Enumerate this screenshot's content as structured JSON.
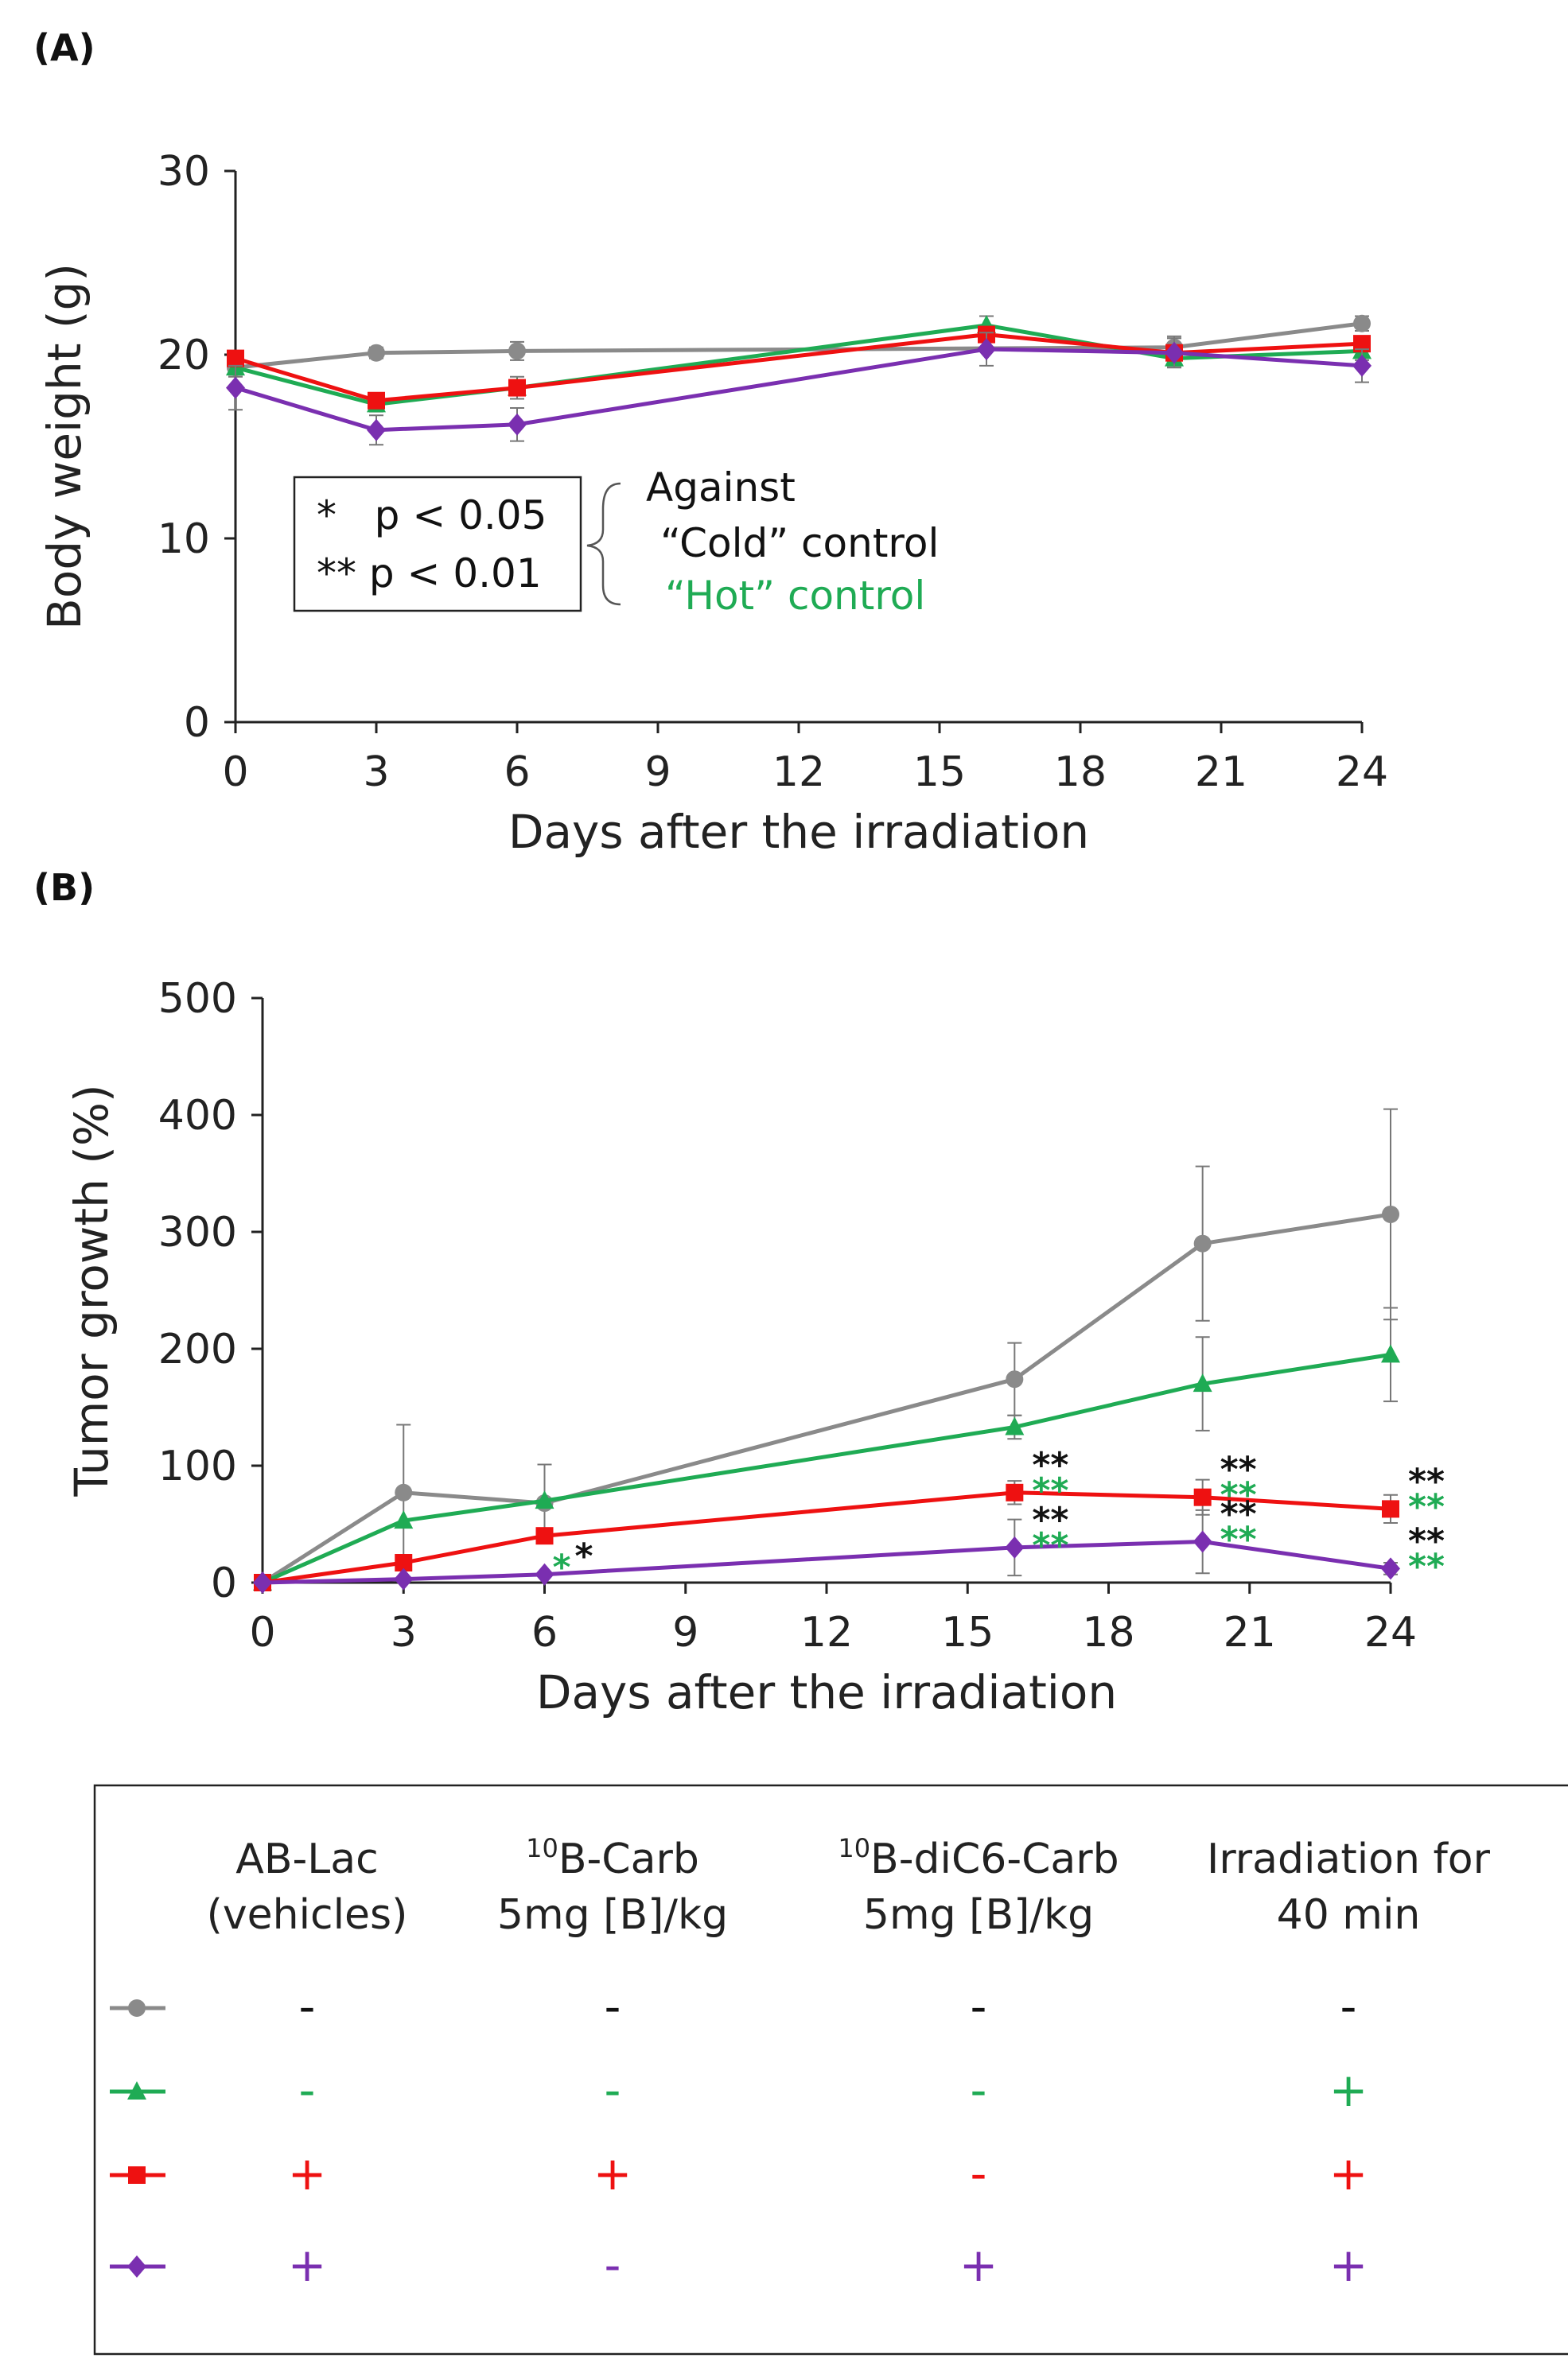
{
  "panel_labels": [
    "(A)",
    "(B)"
  ],
  "colors": {
    "gray": "#8a8a8a",
    "green": "#1fab54",
    "red": "#ee1111",
    "purple": "#7a2fb0",
    "black": "#111111"
  },
  "chart_data": [
    {
      "type": "line",
      "panel": "(A)",
      "xlabel": "Days after the irradiation",
      "ylabel": "Body weight (g)",
      "xlim": [
        0,
        24
      ],
      "ylim": [
        0,
        30
      ],
      "xticks": [
        0,
        3,
        6,
        9,
        12,
        15,
        18,
        21,
        24
      ],
      "yticks": [
        0,
        10,
        20,
        30
      ],
      "grid": false,
      "series": [
        {
          "marker": "circle",
          "color": "gray",
          "x": [
            0,
            3,
            6,
            20,
            24
          ],
          "y": [
            19.3,
            20.1,
            20.2,
            20.4,
            21.7
          ],
          "err": [
            0.4,
            0.3,
            0.5,
            0.6,
            0.4
          ]
        },
        {
          "marker": "triangle",
          "color": "green",
          "x": [
            0,
            3,
            6,
            16,
            20,
            24
          ],
          "y": [
            19.3,
            17.3,
            18.2,
            21.6,
            19.8,
            20.2
          ],
          "err": [
            0.5,
            0.4,
            0.6,
            0.5,
            0.4,
            0.5
          ]
        },
        {
          "marker": "square",
          "color": "red",
          "x": [
            0,
            3,
            6,
            16,
            20,
            24
          ],
          "y": [
            19.8,
            17.5,
            18.2,
            21.1,
            20.1,
            20.6
          ],
          "err": [
            0.4,
            0.4,
            0.4,
            0.4,
            0.8,
            0.4
          ]
        },
        {
          "marker": "diamond",
          "color": "purple",
          "x": [
            0,
            3,
            6,
            16,
            20,
            24
          ],
          "y": [
            18.2,
            15.9,
            16.2,
            20.3,
            20.1,
            19.4
          ],
          "err": [
            1.2,
            0.8,
            0.9,
            0.9,
            0.8,
            0.9
          ]
        }
      ],
      "significance_box": {
        "lines": [
          "*   p < 0.05",
          "** p < 0.01"
        ],
        "against_label": "Against",
        "cold_label": "“Cold” control",
        "hot_label": "“Hot” control"
      }
    },
    {
      "type": "line",
      "panel": "(B)",
      "xlabel": "Days after the irradiation",
      "ylabel": "Tumor growth (%)",
      "xlim": [
        0,
        24
      ],
      "ylim": [
        0,
        500
      ],
      "xticks": [
        0,
        3,
        6,
        9,
        12,
        15,
        18,
        21,
        24
      ],
      "yticks": [
        0,
        100,
        200,
        300,
        400,
        500
      ],
      "grid": false,
      "series": [
        {
          "marker": "circle",
          "color": "gray",
          "x": [
            0,
            3,
            6,
            16,
            20,
            24
          ],
          "y": [
            0,
            77,
            68,
            174,
            290,
            315
          ],
          "err": [
            0,
            58,
            33,
            31,
            66,
            90
          ]
        },
        {
          "marker": "triangle",
          "color": "green",
          "x": [
            0,
            3,
            6,
            16,
            20,
            24
          ],
          "y": [
            0,
            53,
            70,
            133,
            170,
            195
          ],
          "err": [
            0,
            0,
            0,
            10,
            40,
            40
          ]
        },
        {
          "marker": "square",
          "color": "red",
          "x": [
            0,
            3,
            6,
            16,
            20,
            24
          ],
          "y": [
            0,
            17,
            40,
            77,
            73,
            63
          ],
          "err": [
            0,
            0,
            0,
            10,
            15,
            12
          ]
        },
        {
          "marker": "diamond",
          "color": "purple",
          "x": [
            0,
            3,
            6,
            16,
            20,
            24
          ],
          "y": [
            0,
            3,
            7,
            30,
            35,
            12
          ],
          "err": [
            0,
            0,
            0,
            24,
            27,
            5
          ]
        }
      ],
      "annotations": [
        {
          "x": 16,
          "y": 77,
          "upper": "**",
          "lower": "**",
          "upper_color": "black",
          "lower_color": "green"
        },
        {
          "x": 20,
          "y": 73,
          "upper": "**",
          "lower": "**",
          "upper_color": "black",
          "lower_color": "green"
        },
        {
          "x": 24,
          "y": 63,
          "upper": "**",
          "lower": "**",
          "upper_color": "black",
          "lower_color": "green"
        },
        {
          "x": 16,
          "y": 30,
          "upper": "**",
          "lower": "**",
          "upper_color": "black",
          "lower_color": "green"
        },
        {
          "x": 20,
          "y": 35,
          "upper": "**",
          "lower": "**",
          "upper_color": "black",
          "lower_color": "green"
        },
        {
          "x": 24,
          "y": 12,
          "upper": "**",
          "lower": "**",
          "upper_color": "black",
          "lower_color": "green"
        },
        {
          "x": 6,
          "y": 7,
          "inline": [
            {
              "text": "*",
              "color": "green"
            },
            {
              "text": "*",
              "color": "black"
            }
          ]
        }
      ]
    }
  ],
  "legend_table": {
    "columns": [
      {
        "line1": "AB-Lac",
        "line2": "(vehicles)"
      },
      {
        "sup": "10",
        "line1": "B-Carb",
        "line2": "5mg [B]/kg"
      },
      {
        "sup": "10",
        "line1": "B-diC6-Carb",
        "line2": "5mg [B]/kg"
      },
      {
        "line1": "Irradiation for",
        "line2": "40 min"
      }
    ],
    "rows": [
      {
        "marker": "circle",
        "color": "gray",
        "values": [
          "-",
          "-",
          "-",
          "-"
        ]
      },
      {
        "marker": "triangle",
        "color": "green",
        "values": [
          "-",
          "-",
          "-",
          "+"
        ]
      },
      {
        "marker": "square",
        "color": "red",
        "values": [
          "+",
          "+",
          "-",
          "+"
        ]
      },
      {
        "marker": "diamond",
        "color": "purple",
        "values": [
          "+",
          "-",
          "+",
          "+"
        ]
      }
    ]
  }
}
